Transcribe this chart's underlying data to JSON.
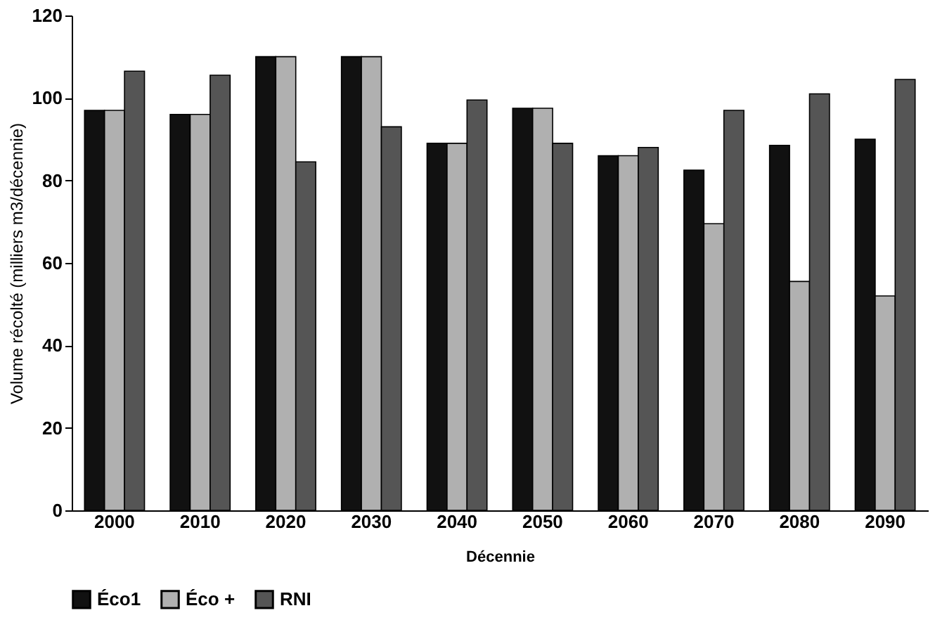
{
  "chart_data": {
    "type": "bar",
    "xlabel": "Décennie",
    "ylabel": "Volume récolté (milliers m3/décennie)",
    "categories": [
      "2000",
      "2010",
      "2020",
      "2030",
      "2040",
      "2050",
      "2060",
      "2070",
      "2080",
      "2090"
    ],
    "series": [
      {
        "name": "Éco1",
        "color": "#111111",
        "values": [
          97,
          96,
          110,
          110,
          89,
          97.5,
          86,
          82.5,
          88.5,
          90
        ]
      },
      {
        "name": "Éco +",
        "color": "#b0b0b0",
        "values": [
          97,
          96,
          110,
          110,
          89,
          97.5,
          86,
          69.5,
          55.5,
          52
        ]
      },
      {
        "name": "RNI",
        "color": "#555555",
        "values": [
          106.5,
          105.5,
          84.5,
          93,
          99.5,
          89,
          88,
          97,
          101,
          104.5
        ]
      }
    ],
    "ylim": [
      0,
      120
    ],
    "yticks": [
      0,
      20,
      40,
      60,
      80,
      100,
      120
    ],
    "grid": false,
    "legend": "bottom"
  }
}
